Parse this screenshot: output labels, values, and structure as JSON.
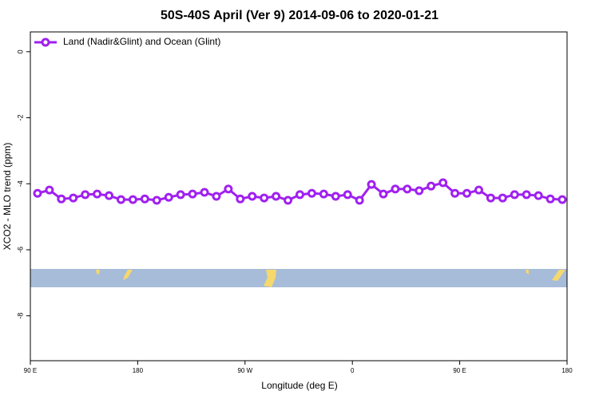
{
  "chart_data": {
    "type": "line",
    "title": "50S-40S April (Ver 9)   2014-09-06 to 2020-01-21",
    "x_label": "Longitude (deg E)",
    "y_label": "XCO2 - MLO trend (ppm)",
    "x": [
      96,
      106,
      116,
      126,
      136,
      146,
      156,
      166,
      176,
      186,
      196,
      206,
      216,
      226,
      236,
      246,
      256,
      266,
      276,
      286,
      296,
      306,
      316,
      326,
      336,
      346,
      356,
      366,
      376,
      386,
      396,
      406,
      416,
      426,
      436,
      446,
      456,
      466,
      476,
      486,
      496,
      506,
      516,
      526,
      536
    ],
    "series": [
      {
        "name": "Land (Nadir&Glint) and Ocean (Glint)",
        "color": "#a020f0",
        "values": [
          -4.29,
          -4.19,
          -4.46,
          -4.43,
          -4.33,
          -4.31,
          -4.36,
          -4.48,
          -4.48,
          -4.46,
          -4.5,
          -4.41,
          -4.33,
          -4.31,
          -4.26,
          -4.38,
          -4.16,
          -4.46,
          -4.38,
          -4.43,
          -4.38,
          -4.5,
          -4.33,
          -4.29,
          -4.31,
          -4.38,
          -4.33,
          -4.5,
          -4.02,
          -4.31,
          -4.16,
          -4.16,
          -4.21,
          -4.07,
          -3.97,
          -4.29,
          -4.29,
          -4.19,
          -4.43,
          -4.43,
          -4.33,
          -4.33,
          -4.36,
          -4.46,
          -4.48
        ]
      }
    ],
    "xlim": [
      90,
      540
    ],
    "xticks": [
      {
        "value": 90,
        "label": "90 E"
      },
      {
        "value": 180,
        "label": "180"
      },
      {
        "value": 270,
        "label": "90 W"
      },
      {
        "value": 360,
        "label": "0"
      },
      {
        "value": 450,
        "label": "90 E"
      },
      {
        "value": 540,
        "label": "180"
      }
    ],
    "ylim": [
      -9.36,
      0.6
    ],
    "yticks": [
      0,
      -2,
      -4,
      -6,
      -8
    ],
    "legend": "top-left"
  }
}
